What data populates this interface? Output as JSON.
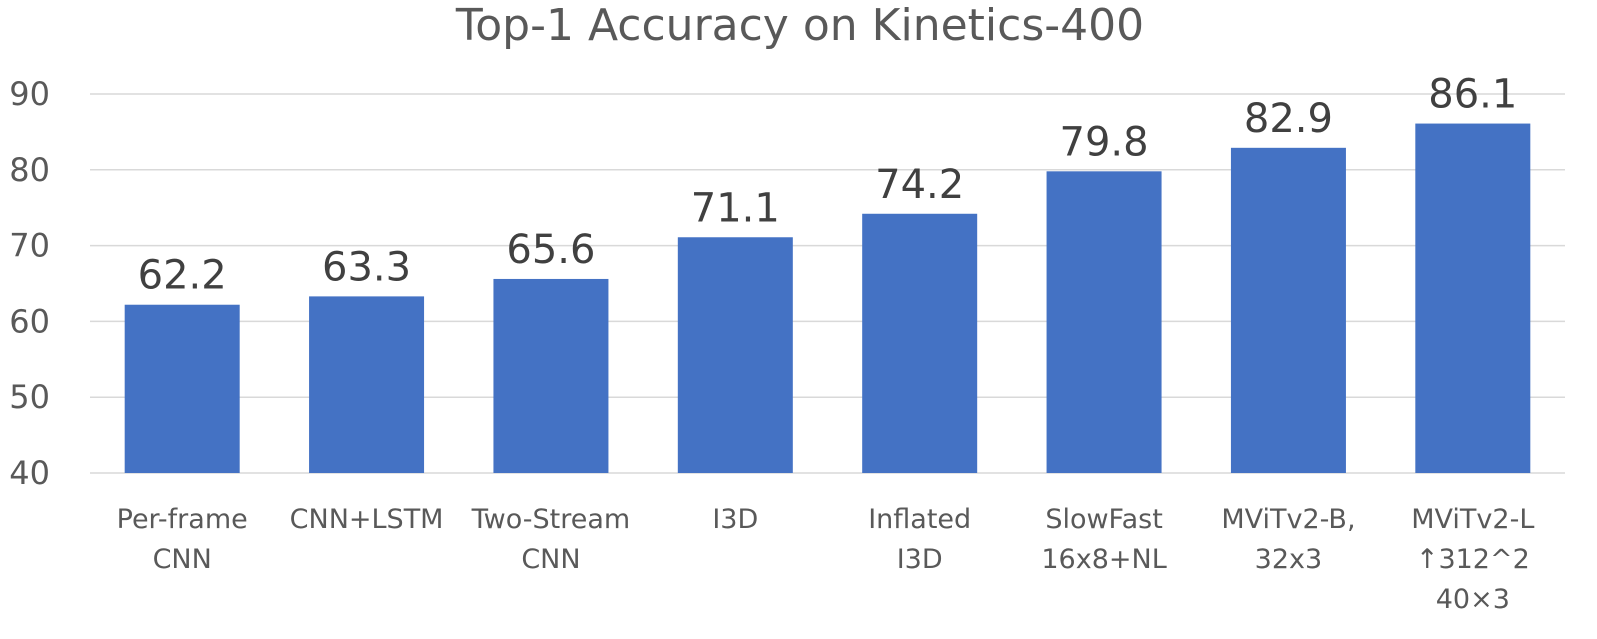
{
  "chart_data": {
    "type": "bar",
    "title": "Top-1 Accuracy on Kinetics-400",
    "xlabel": "",
    "ylabel": "",
    "categories": [
      [
        "Per-frame",
        "CNN"
      ],
      [
        "CNN+LSTM"
      ],
      [
        "Two-Stream",
        "CNN"
      ],
      [
        "I3D"
      ],
      [
        "Inflated",
        "I3D"
      ],
      [
        "SlowFast",
        "16x8+NL"
      ],
      [
        "MViTv2-B,",
        "32x3"
      ],
      [
        "MViTv2-L",
        "↑312^2",
        "40×3"
      ]
    ],
    "values": [
      62.2,
      63.3,
      65.6,
      71.1,
      74.2,
      79.8,
      82.9,
      86.1
    ],
    "ylim": [
      40,
      90
    ],
    "yticks": [
      40,
      50,
      60,
      70,
      80,
      90
    ],
    "grid": true,
    "legend": "none",
    "colors": {
      "bar": "#4472c4",
      "grid": "#d9d9d9",
      "text": "#595959",
      "value_text": "#404040"
    }
  }
}
